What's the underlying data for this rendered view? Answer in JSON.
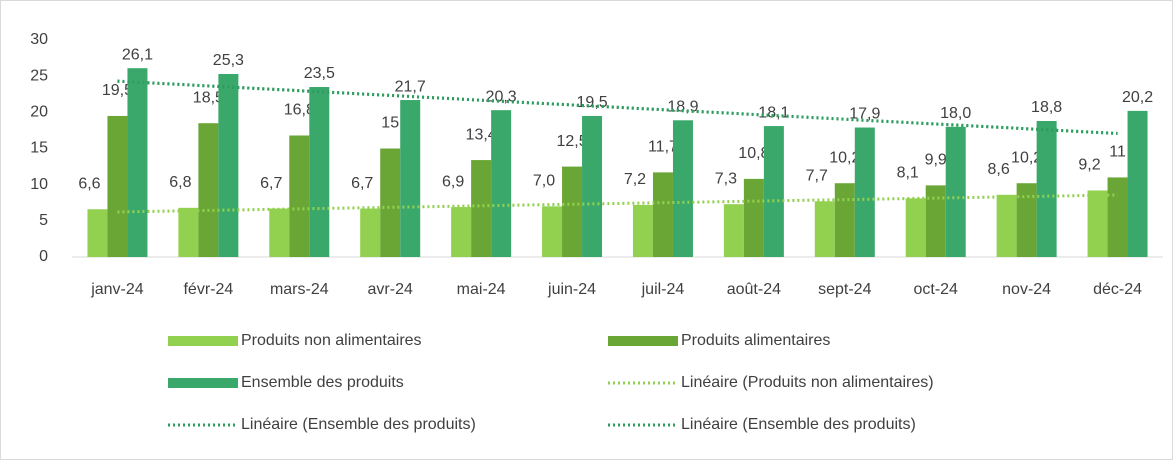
{
  "chart_data": {
    "type": "bar",
    "categories": [
      "janv-24",
      "févr-24",
      "mars-24",
      "avr-24",
      "mai-24",
      "juin-24",
      "juil-24",
      "août-24",
      "sept-24",
      "oct-24",
      "nov-24",
      "déc-24"
    ],
    "series": [
      {
        "name": "Produits  non alimentaires",
        "color": "#92d050",
        "values": [
          6.6,
          6.8,
          6.7,
          6.7,
          6.9,
          7.0,
          7.2,
          7.3,
          7.7,
          8.1,
          8.6,
          9.2
        ],
        "value_labels": [
          "6,6",
          "6,8",
          "6,7",
          "6,7",
          "6,9",
          "7,0",
          "7,2",
          "7,3",
          "7,7",
          "8,1",
          "8,6",
          "9,2"
        ]
      },
      {
        "name": "Produits alimentaires",
        "color": "#6aa636",
        "values": [
          19.5,
          18.5,
          16.8,
          15,
          13.4,
          12.5,
          11.7,
          10.8,
          10.2,
          9.9,
          10.2,
          11
        ],
        "value_labels": [
          "19,5",
          "18,5",
          "16,8",
          "15",
          "13,4",
          "12,5",
          "11,7",
          "10,8",
          "10,2",
          "9,9",
          "10,2",
          "11"
        ]
      },
      {
        "name": "Ensemble des produits",
        "color": "#3aa86b",
        "values": [
          26.1,
          25.3,
          23.5,
          21.7,
          20.3,
          19.5,
          18.9,
          18.1,
          17.9,
          18.0,
          18.8,
          20.2
        ],
        "value_labels": [
          "26,1",
          "25,3",
          "23,5",
          "21,7",
          "20,3",
          "19,5",
          "18,9",
          "18,1",
          "17,9",
          "18,0",
          "18,8",
          "20,2"
        ]
      }
    ],
    "trendlines": [
      {
        "name": "Linéaire (Produits  non alimentaires)",
        "series": 0,
        "color": "#92d050"
      },
      {
        "name": "Linéaire (Ensemble des produits)",
        "series": 2,
        "color": "#2e9e60"
      },
      {
        "name": "Linéaire (Ensemble des produits)",
        "series": 2,
        "color": "#2e9e60"
      }
    ],
    "ylim": [
      0,
      30
    ],
    "yticks": [
      0,
      5,
      10,
      15,
      20,
      25,
      30
    ],
    "grid": false
  }
}
